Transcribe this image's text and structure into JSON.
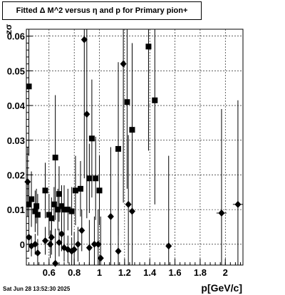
{
  "title": "Fitted Δ M^2 versus η and p for Primary pion+",
  "timestamp": "Sat Jun 28 13:52:30 2025",
  "chart_data": {
    "type": "scatter",
    "title": "Fitted Δ M^2 versus η and p for Primary pion+",
    "xlabel": "p[GeV/c]",
    "ylabel": "zσ",
    "xlim": [
      0.42,
      2.14
    ],
    "ylim": [
      -0.006,
      0.062
    ],
    "xticks": [
      0.6,
      0.8,
      1,
      1.2,
      1.4,
      1.6,
      1.8,
      2
    ],
    "xtick_labels": [
      "0.6",
      "0.8",
      "1",
      "1.2",
      "1.4",
      "1.6",
      "1.8",
      "2"
    ],
    "yticks": [
      0,
      0.01,
      0.02,
      0.03,
      0.04,
      0.05,
      0.06
    ],
    "ytick_labels": [
      "0",
      "0.01",
      "0.02",
      "0.03",
      "0.04",
      "0.05",
      "0.06"
    ],
    "grid": true,
    "series": [
      {
        "marker": "square",
        "points": [
          {
            "x": 0.44,
            "y": 0.0455,
            "err": 0.02
          },
          {
            "x": 0.44,
            "y": 0.0115,
            "err": 0.006
          },
          {
            "x": 0.46,
            "y": 0.013,
            "err": 0.008
          },
          {
            "x": 0.49,
            "y": 0.0095,
            "err": 0.006
          },
          {
            "x": 0.5,
            "y": 0.011,
            "err": 0.005
          },
          {
            "x": 0.51,
            "y": 0.0085,
            "err": 0.006
          },
          {
            "x": 0.57,
            "y": 0.0155,
            "err": 0.008
          },
          {
            "x": 0.6,
            "y": 0.0085,
            "err": 0.006
          },
          {
            "x": 0.62,
            "y": 0.0075,
            "err": 0.006
          },
          {
            "x": 0.64,
            "y": 0.0115,
            "err": 0.005
          },
          {
            "x": 0.65,
            "y": 0.025,
            "err": 0.018
          },
          {
            "x": 0.67,
            "y": 0.01,
            "err": 0.006
          },
          {
            "x": 0.68,
            "y": 0.0145,
            "err": 0.008
          },
          {
            "x": 0.7,
            "y": 0.011,
            "err": 0.006
          },
          {
            "x": 0.72,
            "y": 0.01,
            "err": 0.007
          },
          {
            "x": 0.75,
            "y": 0.01,
            "err": 0.006
          },
          {
            "x": 0.78,
            "y": 0.0095,
            "err": 0.007
          },
          {
            "x": 0.81,
            "y": 0.0155,
            "err": 0.01
          },
          {
            "x": 0.85,
            "y": 0.016,
            "err": 0.008
          },
          {
            "x": 0.92,
            "y": 0.019,
            "err": 0.01
          },
          {
            "x": 0.94,
            "y": 0.0305,
            "err": 0.017
          },
          {
            "x": 0.97,
            "y": 0.019,
            "err": 0.012
          },
          {
            "x": 1.0,
            "y": 0.0155,
            "err": 0.01
          },
          {
            "x": 1.15,
            "y": 0.0275,
            "err": 0.025
          },
          {
            "x": 1.22,
            "y": 0.041,
            "err": 0.025
          },
          {
            "x": 1.26,
            "y": 0.033,
            "err": 0.025
          },
          {
            "x": 1.39,
            "y": 0.057,
            "err": 0.03
          },
          {
            "x": 1.44,
            "y": 0.0415,
            "err": 0.03
          }
        ]
      },
      {
        "marker": "diamond",
        "points": [
          {
            "x": 0.43,
            "y": 0.018,
            "err": 0.01
          },
          {
            "x": 0.44,
            "y": 0.002,
            "err": 0.004
          },
          {
            "x": 0.46,
            "y": -0.0005,
            "err": 0.003
          },
          {
            "x": 0.49,
            "y": 0.0,
            "err": 0.003
          },
          {
            "x": 0.51,
            "y": -0.0025,
            "err": 0.004
          },
          {
            "x": 0.57,
            "y": 0.001,
            "err": 0.004
          },
          {
            "x": 0.61,
            "y": 0.0,
            "err": 0.004
          },
          {
            "x": 0.62,
            "y": 0.002,
            "err": 0.005
          },
          {
            "x": 0.65,
            "y": -0.0055,
            "err": 0.01
          },
          {
            "x": 0.68,
            "y": 0.0005,
            "err": 0.004
          },
          {
            "x": 0.7,
            "y": 0.003,
            "err": 0.005
          },
          {
            "x": 0.72,
            "y": -0.001,
            "err": 0.004
          },
          {
            "x": 0.75,
            "y": -0.0015,
            "err": 0.004
          },
          {
            "x": 0.78,
            "y": -0.002,
            "err": 0.004
          },
          {
            "x": 0.8,
            "y": -0.0015,
            "err": 0.005
          },
          {
            "x": 0.83,
            "y": 0.0,
            "err": 0.005
          },
          {
            "x": 0.86,
            "y": 0.004,
            "err": 0.006
          },
          {
            "x": 0.88,
            "y": 0.059,
            "err": 0.04
          },
          {
            "x": 0.9,
            "y": 0.0375,
            "err": 0.03
          },
          {
            "x": 0.92,
            "y": -0.001,
            "err": 0.008
          },
          {
            "x": 0.96,
            "y": 0.0,
            "err": 0.008
          },
          {
            "x": 0.99,
            "y": 0.0,
            "err": 0.01
          },
          {
            "x": 1.01,
            "y": -0.004,
            "err": 0.012
          },
          {
            "x": 1.09,
            "y": 0.008,
            "err": 0.02
          },
          {
            "x": 1.15,
            "y": -0.002,
            "err": 0.02
          },
          {
            "x": 1.19,
            "y": 0.052,
            "err": 0.04
          },
          {
            "x": 1.23,
            "y": 0.0115,
            "err": 0.02
          },
          {
            "x": 1.26,
            "y": 0.0095,
            "err": 0.02
          },
          {
            "x": 1.55,
            "y": -0.0005,
            "err": 0.026
          },
          {
            "x": 1.97,
            "y": 0.009,
            "err": 0.03,
            "xerr": 0.04
          },
          {
            "x": 2.1,
            "y": 0.0115,
            "err": 0.03,
            "xerr": 0.04
          }
        ]
      }
    ]
  }
}
